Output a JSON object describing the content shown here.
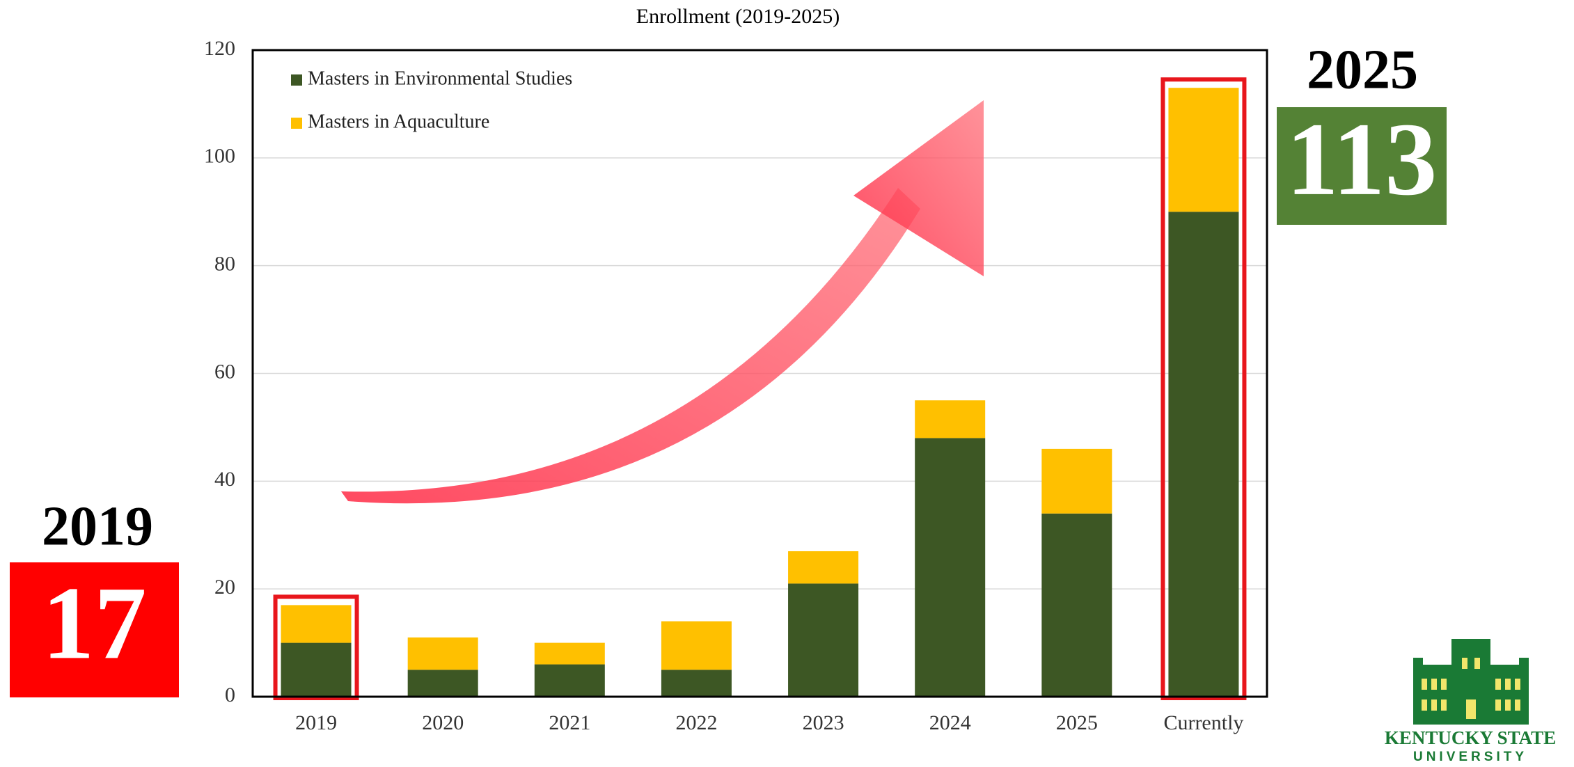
{
  "chart_data": {
    "type": "bar",
    "stacked": true,
    "title": "Enrollment (2019-2025)",
    "categories": [
      "2019",
      "2020",
      "2021",
      "2022",
      "2023",
      "2024",
      "2025",
      "Currently"
    ],
    "series": [
      {
        "name": "Masters in Environmental Studies",
        "color": "#3d5724",
        "values": [
          10,
          5,
          6,
          5,
          21,
          48,
          34,
          90
        ]
      },
      {
        "name": "Masters in Aquaculture",
        "color": "#ffc000",
        "values": [
          7,
          6,
          4,
          9,
          6,
          7,
          12,
          23
        ]
      }
    ],
    "ylim": [
      0,
      120
    ],
    "yticks": [
      0,
      20,
      40,
      60,
      80,
      100,
      120
    ],
    "grid": true,
    "legend": "upper-left",
    "highlight_color": "#e8161c"
  },
  "callouts": [
    {
      "label": "2019",
      "value": 17,
      "color": "#ff0000"
    },
    {
      "label": "2025",
      "value": 113,
      "color": "#548235"
    }
  ],
  "logo": {
    "name": "KENTUCKY STATE",
    "subtitle": "UNIVERSITY"
  }
}
